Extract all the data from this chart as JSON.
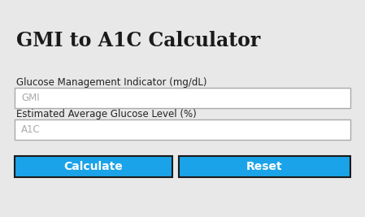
{
  "title": "GMI to A1C Calculator",
  "title_fontsize": 17,
  "title_fontweight": "bold",
  "title_color": "#1a1a1a",
  "label1": "Glucose Management Indicator (mg/dL)",
  "label2": "Estimated Average Glucose Level (%)",
  "placeholder1": "GMI",
  "placeholder2": "A1C",
  "btn1_text": "Calculate",
  "btn2_text": "Reset",
  "bg_color": "#e8e8e8",
  "input_bg": "#ffffff",
  "input_border": "#aaaaaa",
  "btn_color": "#1aa3e8",
  "btn_border": "#1a1a1a",
  "btn_text_color": "#ffffff",
  "placeholder_color": "#aaaaaa",
  "label_color": "#222222",
  "label_fontsize": 8.5,
  "placeholder_fontsize": 8.5,
  "btn_fontsize": 10
}
